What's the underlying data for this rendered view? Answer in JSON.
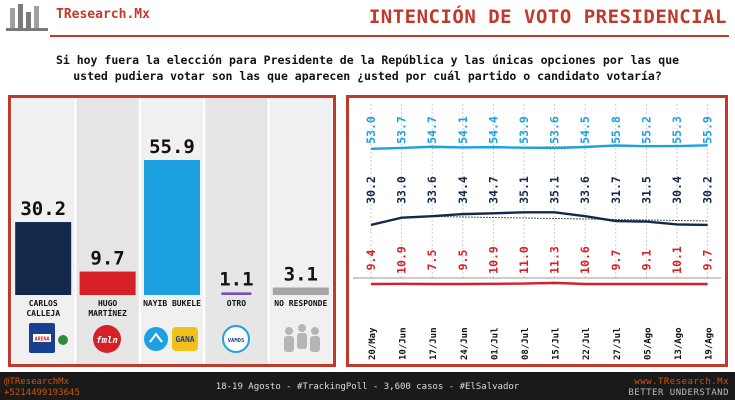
{
  "header": {
    "brand": "TResearch.Mx",
    "title": "INTENCIÓN DE VOTO PRESIDENCIAL"
  },
  "question": {
    "line1": "Si hoy fuera la elección para Presidente de la República y las únicas opciones por las que",
    "line2": "usted pudiera votar son las que aparecen ¿usted por cuál partido o candidato votaría?"
  },
  "colors": {
    "accent": "#c0392b",
    "calleja": "#13294b",
    "martinez": "#d61f26",
    "bukele": "#1da1e0",
    "otro": "#7b4fb5",
    "no_responde": "#a6a6a6"
  },
  "parties": {
    "arena": "ARENA",
    "fmln": "fmln",
    "gana": "GANA",
    "vamos": "VAMOS"
  },
  "chart_data": [
    {
      "type": "bar",
      "categories": [
        "CARLOS CALLEJA",
        "HUGO MARTÍNEZ",
        "NAYIB BUKELE",
        "OTRO",
        "NO RESPONDE"
      ],
      "values": [
        30.2,
        9.7,
        55.9,
        1.1,
        3.1
      ],
      "value_labels": [
        "30.2",
        "9.7",
        "55.9",
        "1.1",
        "3.1"
      ],
      "ylim": [
        0,
        65
      ]
    },
    {
      "type": "line",
      "x": [
        "20/May",
        "10/Jun",
        "17/Jun",
        "24/Jun",
        "01/Jul",
        "08/Jul",
        "15/Jul",
        "22/Jul",
        "27/Jul",
        "05/Ago",
        "13/Ago",
        "19/Ago"
      ],
      "series": [
        {
          "values": [
            53.0,
            53.7,
            54.7,
            54.1,
            54.4,
            53.9,
            53.6,
            54.5,
            55.8,
            55.2,
            55.3,
            55.9
          ],
          "labels": [
            "53.0",
            "53.7",
            "54.7",
            "54.1",
            "54.4",
            "53.9",
            "53.6",
            "54.5",
            "55.8",
            "55.2",
            "55.3",
            "55.9"
          ]
        },
        {
          "values": [
            30.2,
            33.0,
            33.6,
            34.4,
            34.7,
            35.1,
            35.1,
            33.6,
            31.7,
            31.5,
            30.4,
            30.2
          ],
          "labels": [
            "30.2",
            "33.0",
            "33.6",
            "34.4",
            "34.7",
            "35.1",
            "35.1",
            "33.6",
            "31.7",
            "31.5",
            "30.4",
            "30.2"
          ]
        },
        {
          "values": [
            9.4,
            10.9,
            7.5,
            9.5,
            10.9,
            11.0,
            11.3,
            10.6,
            9.7,
            9.1,
            10.1,
            9.7
          ],
          "labels": [
            "9.4",
            "10.9",
            "7.5",
            "9.5",
            "10.9",
            "11.0",
            "11.3",
            "10.6",
            "9.7",
            "9.1",
            "10.1",
            "9.7"
          ]
        }
      ]
    }
  ],
  "footer": {
    "handle": "@TResearchMx",
    "phone": "+5214499193645",
    "info": "18-19 Agosto - #TrackingPoll - 3,600 casos - #ElSalvador",
    "site": "www.TResearch.Mx",
    "tagline": "BETTER UNDERSTAND"
  }
}
